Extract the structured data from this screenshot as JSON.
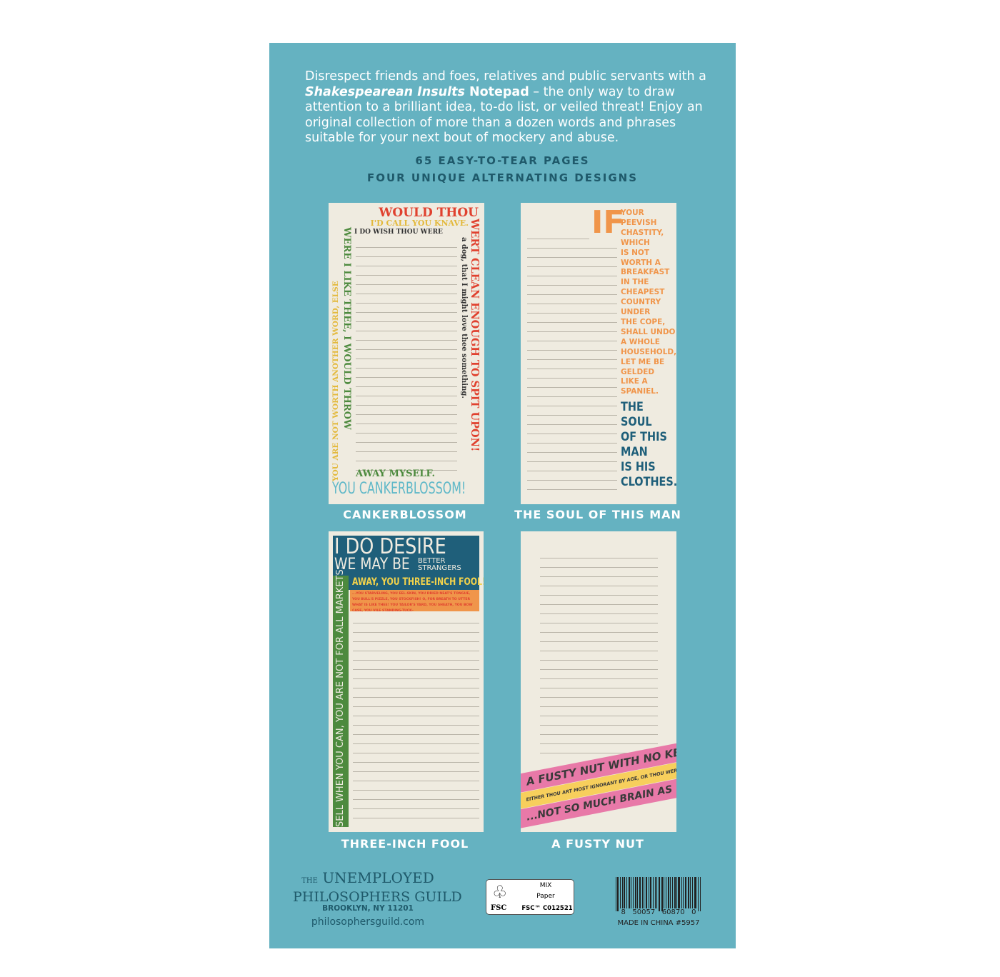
{
  "intro": {
    "line_pre": "Disrespect friends and foes, relatives and public servants with a ",
    "product": "Shakespearean Insults",
    "product_suffix": " Notepad",
    "line_post": " – the only way to draw attention to a brilliant idea, to-do list, or veiled threat! Enjoy an original collection of more than a dozen words and phrases suitable for your next bout of mockery and abuse."
  },
  "features": [
    "65 EASY-TO-TEAR PAGES",
    "FOUR UNIQUE ALTERNATING DESIGNS"
  ],
  "designs": [
    {
      "caption": "CANKERBLOSSOM",
      "t1": "WOULD THOU",
      "t2": "I'D CALL YOU KNAVE.",
      "t3": "I DO WISH THOU WERE",
      "left_yellow": "YOU ARE NOT WORTH ANOTHER WORD, ELSE",
      "green": "WERE I LIKE THEE, I WOULD THROW",
      "green_bottom": "AWAY MYSELF.",
      "dark": "a dog, that I might love thee something.",
      "red": "WERT CLEAN ENOUGH TO SPIT UPON!",
      "bottom": "YOU CANKERBLOSSOM!"
    },
    {
      "caption": "THE SOUL OF THIS MAN",
      "big": "IF",
      "small": [
        "YOUR",
        "PEEVISH",
        "CHASTITY,",
        "WHICH",
        "IS NOT",
        "WORTH A",
        "BREAKFAST",
        "IN THE",
        "CHEAPEST",
        "COUNTRY",
        "UNDER",
        "THE COPE,",
        "SHALL UNDO",
        "A WHOLE",
        "HOUSEHOLD,",
        "LET ME BE",
        "GELDED",
        "LIKE A",
        "SPANIEL."
      ],
      "navy": [
        "THE SOUL",
        "OF THIS",
        "MAN",
        "IS HIS",
        "CLOTHES."
      ]
    },
    {
      "caption": "THREE-INCH FOOL",
      "t1": "I DO DESIRE",
      "t2": "WE MAY BE",
      "t3a": "BETTER",
      "t3b": "STRANGERS",
      "t4": "AWAY, YOU THREE-INCH FOOL!",
      "small": "...YOU STARVELING, YOU EEL-SKIN, YOU DRIED NEAT'S TONGUE, YOU BULL'S PIZZLE, YOU STOCKFISH! O, FOR BREATH TO UTTER WHAT IS LIKE THEE! YOU TAILOR'S YARD, YOU SHEATH, YOU BOW CASE, YOU VILE STANDING-TUCK–",
      "side": "SELL WHEN YOU CAN, YOU ARE NOT FOR ALL MARKETS."
    },
    {
      "caption": "A FUSTY NUT",
      "b1": "A FUSTY NUT WITH NO KERNEL.",
      "b2": "EITHER THOU ART MOST IGNORANT BY AGE, OR THOU WERT BORN A FOOL.",
      "b3": "...NOT SO MUCH BRAIN AS EARWAX."
    }
  ],
  "footer": {
    "logo_the": "THE",
    "logo_line1": "UNEMPLOYED",
    "logo_line2": "PHILOSOPHERS GUILD",
    "address": "BROOKLYN, NY 11201",
    "website": "philosophersguild.com",
    "fsc_mix": "MIX",
    "fsc_paper": "Paper",
    "fsc_label": "FSC",
    "fsc_code": "FSC™ C012521",
    "barcode_number": "8   50057   60870   0",
    "made_in": "MADE IN CHINA #5957"
  },
  "colors": {
    "panel": "#65b2c1",
    "paper": "#efebe0",
    "red": "#e0412f",
    "yellow": "#e3b93c",
    "green": "#4d8a3e",
    "navy": "#1f5f7a",
    "orange": "#f0954a",
    "pink": "#e879a8"
  }
}
